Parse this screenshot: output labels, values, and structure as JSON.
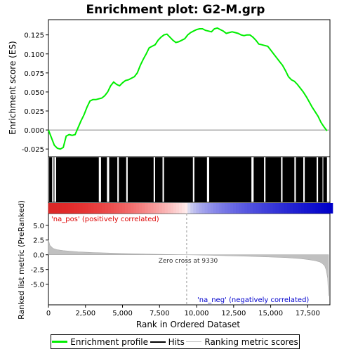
{
  "chart_data": {
    "type": "line",
    "title": "Enrichment plot: G2-M.grp",
    "xlabel": "Rank in Ordered Dataset",
    "top_ylabel": "Enrichment score (ES)",
    "bottom_ylabel": "Ranked list metric (PreRanked)",
    "xlim": [
      0,
      19000
    ],
    "x_ticks": [
      0,
      2500,
      5000,
      7500,
      10000,
      12500,
      15000,
      17500
    ],
    "x_tick_labels": [
      "0",
      "2,500",
      "5,000",
      "7,500",
      "10,000",
      "12,500",
      "15,000",
      "17,500"
    ],
    "es_ylim": [
      -0.035,
      0.145
    ],
    "es_ticks": [
      -0.025,
      0.0,
      0.025,
      0.05,
      0.075,
      0.1,
      0.125
    ],
    "es_tick_labels": [
      "-0.025",
      "0.000",
      "0.025",
      "0.050",
      "0.075",
      "0.100",
      "0.125"
    ],
    "es_series": {
      "name": "Enrichment profile",
      "color": "#00ee00",
      "x": [
        0,
        200,
        400,
        600,
        800,
        1000,
        1200,
        1400,
        1600,
        1800,
        2000,
        2200,
        2400,
        2600,
        2800,
        3000,
        3200,
        3400,
        3600,
        3800,
        4000,
        4200,
        4400,
        4600,
        4800,
        5000,
        5200,
        5400,
        5600,
        5800,
        6000,
        6200,
        6400,
        6600,
        6800,
        7000,
        7200,
        7400,
        7600,
        7800,
        8000,
        8200,
        8400,
        8600,
        8800,
        9000,
        9200,
        9400,
        9600,
        9800,
        10000,
        10200,
        10400,
        10600,
        10800,
        11000,
        11200,
        11400,
        11600,
        11800,
        12000,
        12200,
        12400,
        12600,
        12800,
        13000,
        13200,
        13400,
        13600,
        13800,
        14000,
        14200,
        14400,
        14600,
        14800,
        15000,
        15200,
        15400,
        15600,
        15800,
        16000,
        16200,
        16400,
        16600,
        16800,
        17000,
        17200,
        17400,
        17600,
        17800,
        18000,
        18200,
        18400,
        18600,
        18800
      ],
      "y": [
        0.0,
        -0.01,
        -0.02,
        -0.024,
        -0.025,
        -0.023,
        -0.008,
        -0.006,
        -0.007,
        -0.006,
        0.003,
        0.012,
        0.02,
        0.03,
        0.038,
        0.04,
        0.04,
        0.041,
        0.042,
        0.045,
        0.05,
        0.058,
        0.063,
        0.06,
        0.058,
        0.062,
        0.065,
        0.066,
        0.068,
        0.07,
        0.075,
        0.085,
        0.093,
        0.1,
        0.108,
        0.11,
        0.112,
        0.118,
        0.122,
        0.125,
        0.126,
        0.122,
        0.118,
        0.115,
        0.116,
        0.118,
        0.12,
        0.125,
        0.128,
        0.13,
        0.132,
        0.133,
        0.133,
        0.131,
        0.13,
        0.129,
        0.133,
        0.134,
        0.132,
        0.13,
        0.127,
        0.128,
        0.129,
        0.128,
        0.127,
        0.125,
        0.124,
        0.125,
        0.125,
        0.122,
        0.118,
        0.113,
        0.112,
        0.111,
        0.11,
        0.105,
        0.1,
        0.095,
        0.09,
        0.085,
        0.078,
        0.07,
        0.066,
        0.064,
        0.06,
        0.055,
        0.05,
        0.044,
        0.037,
        0.03,
        0.024,
        0.018,
        0.01,
        0.004,
        -0.001
      ]
    },
    "hits_legend": "Hits",
    "hit_segments": [
      [
        50,
        250
      ],
      [
        350,
        400
      ],
      [
        520,
        3400
      ],
      [
        3550,
        3950
      ],
      [
        4100,
        4650
      ],
      [
        4750,
        5250
      ],
      [
        5350,
        7100
      ],
      [
        7200,
        7700
      ],
      [
        7800,
        9750
      ],
      [
        9850,
        10700
      ],
      [
        10850,
        13700
      ],
      [
        13850,
        14550
      ],
      [
        14650,
        15700
      ],
      [
        15800,
        16600
      ],
      [
        16700,
        17200
      ],
      [
        17300,
        18100
      ],
      [
        18200,
        18500
      ],
      [
        18550,
        18800
      ]
    ],
    "metric_series": {
      "name": "Ranking metric scores",
      "color": "#c0c0c0",
      "x": [
        0,
        100,
        300,
        600,
        1000,
        2000,
        3000,
        4000,
        5000,
        6000,
        7000,
        8000,
        9000,
        9330,
        10000,
        11000,
        12000,
        13000,
        14000,
        15000,
        16000,
        17000,
        17500,
        18000,
        18300,
        18500,
        18650,
        18750,
        18850,
        18900
      ],
      "y": [
        2.5,
        1.6,
        1.1,
        0.85,
        0.7,
        0.5,
        0.38,
        0.3,
        0.22,
        0.16,
        0.1,
        0.05,
        0.01,
        0.0,
        -0.04,
        -0.1,
        -0.16,
        -0.23,
        -0.3,
        -0.38,
        -0.48,
        -0.65,
        -0.8,
        -1.0,
        -1.2,
        -1.5,
        -1.9,
        -2.6,
        -4.0,
        -7.0
      ]
    },
    "metric_ylim": [
      -8.5,
      7.0
    ],
    "metric_ticks": [
      -5.0,
      -2.5,
      0.0,
      2.5,
      5.0
    ],
    "metric_tick_labels": [
      "-5.0",
      "-2.5",
      "0.0",
      "2.5",
      "5.0"
    ],
    "zero_cross_label": "Zero cross at 9330",
    "zero_cross": 9330,
    "pos_label": "'na_pos' (positively correlated)",
    "neg_label": "'na_neg' (negatively correlated)",
    "pos_color": "#dd0000",
    "neg_color": "#0000cc"
  },
  "legend": {
    "enrichment": "Enrichment profile",
    "hits": "Hits",
    "metric": "Ranking metric scores"
  }
}
